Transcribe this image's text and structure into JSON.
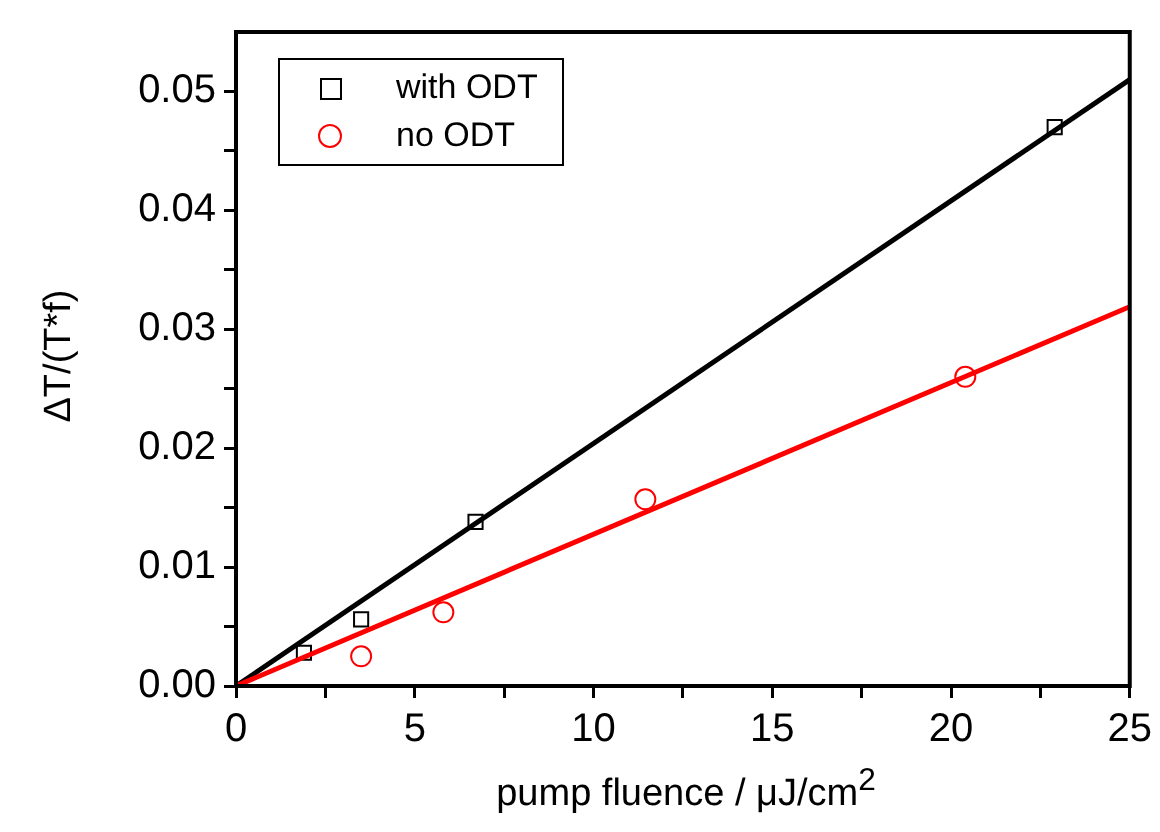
{
  "chart_data": {
    "type": "scatter",
    "xlabel": "pump fluence / μJ/cm$^{2}$",
    "ylabel": "ΔT/(T*f)",
    "xlim": [
      0,
      25
    ],
    "ylim": [
      0,
      0.055
    ],
    "xticks": [
      0,
      {
        "value": 2.5,
        "label": null
      },
      5,
      {
        "value": 7.5,
        "label": null
      },
      10,
      {
        "value": 12.5,
        "label": null
      },
      15,
      {
        "value": 17.5,
        "label": null
      },
      20,
      {
        "value": 22.5,
        "label": null
      },
      25
    ],
    "yticks": [
      {
        "value": 0,
        "label": "0.00"
      },
      {
        "value": 0.005,
        "label": null
      },
      {
        "value": 0.01,
        "label": "0.01"
      },
      {
        "value": 0.015,
        "label": null
      },
      {
        "value": 0.02,
        "label": "0.02"
      },
      {
        "value": 0.025,
        "label": null
      },
      {
        "value": 0.03,
        "label": "0.03"
      },
      {
        "value": 0.035,
        "label": null
      },
      {
        "value": 0.04,
        "label": "0.04"
      },
      {
        "value": 0.045,
        "label": null
      },
      {
        "value": 0.05,
        "label": "0.05"
      }
    ],
    "legend": "top left",
    "grid": false,
    "series": [
      {
        "name": "with ODT",
        "marker": "square",
        "color": "#000000",
        "x": [
          1.9,
          3.5,
          6.7,
          22.9
        ],
        "values": [
          0.0028,
          0.0056,
          0.0138,
          0.047
        ]
      },
      {
        "name": "no ODT",
        "marker": "circle",
        "color": "#ff0000",
        "x": [
          3.5,
          5.8,
          11.45,
          20.4
        ],
        "values": [
          0.0025,
          0.0062,
          0.0157,
          0.026
        ]
      },
      {
        "type": "line",
        "marker": "none",
        "color": "#000000",
        "x": [
          0,
          25
        ],
        "values": [
          0,
          0.051
        ]
      },
      {
        "type": "line",
        "marker": "none",
        "color": "#ff0000",
        "x": [
          0,
          25
        ],
        "values": [
          0,
          0.0319
        ]
      }
    ]
  }
}
